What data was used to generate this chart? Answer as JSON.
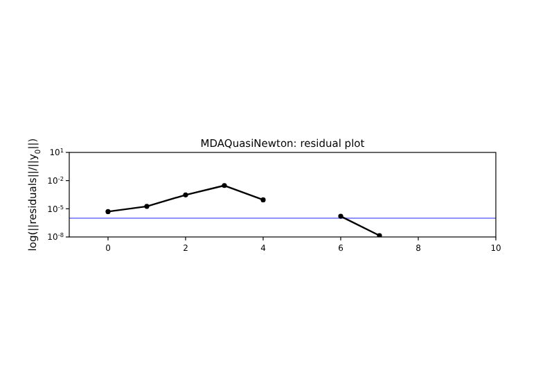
{
  "chart_data": {
    "type": "line",
    "title": "MDAQuasiNewton: residual plot",
    "ylabel": "log(||residuals||/||y$_{0}$||)",
    "x": [
      0,
      1,
      2,
      3,
      4,
      5,
      6,
      7
    ],
    "series": [
      {
        "color": "#000000",
        "values": [
          5e-06,
          1.8e-05,
          0.0003,
          0.003,
          9e-05,
          null,
          1.6e-06,
          1.4e-08
        ]
      }
    ],
    "log": "y",
    "xlim": [
      -1,
      10
    ],
    "xticks": [
      0,
      2,
      4,
      6,
      8,
      10
    ],
    "ylim": [
      1e-08,
      10
    ],
    "yticks": [
      {
        "value": 1e-08,
        "label": "10$^{-8}$"
      },
      {
        "value": 1e-05,
        "label": "10$^{-5}$"
      },
      {
        "value": 0.01,
        "label": "10$^{-2}$"
      },
      {
        "value": 10,
        "label": "10$^{1}$"
      }
    ],
    "ref_lines": [
      {
        "axis": "y",
        "value": 1e-06,
        "color": "#8080ff"
      }
    ],
    "grid": false,
    "marker": "circle",
    "line_style": "solid"
  }
}
